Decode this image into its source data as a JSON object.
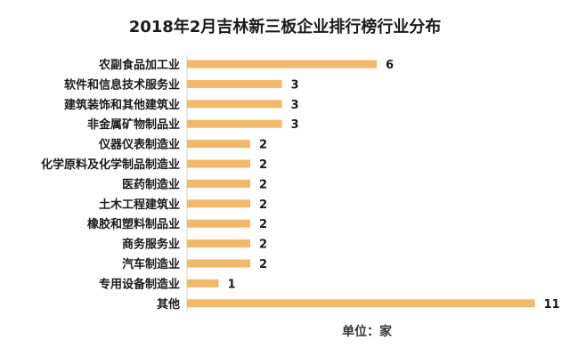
{
  "chart_data": {
    "type": "bar",
    "orientation": "horizontal",
    "title": "2018年2月吉林新三板企业排行榜行业分布",
    "categories": [
      "农副食品加工业",
      "软件和信息技术服务业",
      "建筑装饰和其他建筑业",
      "非金属矿物制品业",
      "仪器仪表制造业",
      "化学原料及化学制品制造业",
      "医药制造业",
      "土木工程建筑业",
      "橡胶和塑料制品业",
      "商务服务业",
      "汽车制造业",
      "专用设备制造业",
      "其他"
    ],
    "values": [
      6,
      3,
      3,
      3,
      2,
      2,
      2,
      2,
      2,
      2,
      2,
      1,
      11
    ],
    "xlim": [
      0,
      11
    ],
    "grid": false,
    "unit_label": "单位：家",
    "colors": {
      "bar": "#F2B96A",
      "label": "#1a1a1a"
    }
  }
}
